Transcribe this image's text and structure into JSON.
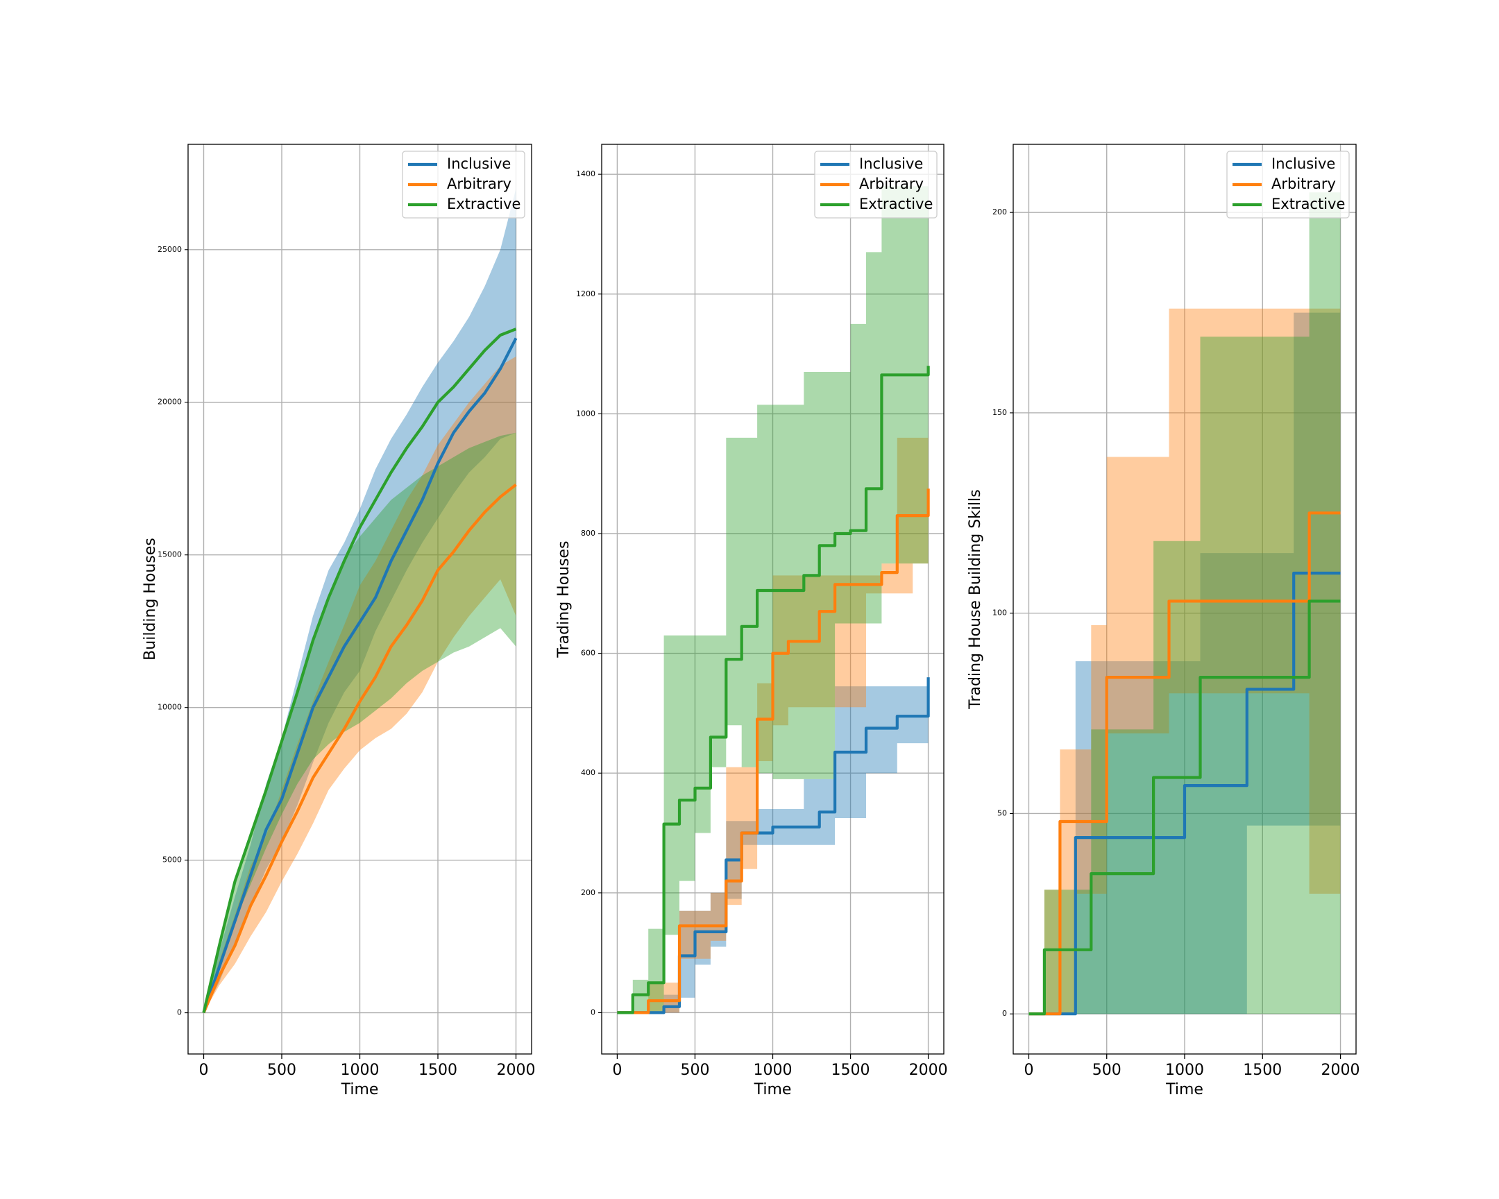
{
  "chart_data": [
    {
      "type": "line",
      "drawstyle": "default",
      "xlabel": "Time",
      "ylabel": "Building Houses",
      "x": [
        0,
        100,
        200,
        300,
        400,
        500,
        600,
        700,
        800,
        900,
        1000,
        1100,
        1200,
        1300,
        1400,
        1500,
        1600,
        1700,
        1800,
        1900,
        2000
      ],
      "xlim": [
        -100,
        2100
      ],
      "ylim": [
        -1350,
        28450
      ],
      "xticks": [
        0,
        500,
        1000,
        1500,
        2000
      ],
      "yticks": [
        0,
        5000,
        10000,
        15000,
        20000,
        25000
      ],
      "grid": true,
      "legend": "upper right",
      "series": [
        {
          "name": "Inclusive",
          "color": "#1f77b4",
          "values": [
            0,
            1500,
            3000,
            4500,
            6000,
            7000,
            8500,
            10000,
            11000,
            12000,
            12800,
            13600,
            14800,
            15800,
            16800,
            18000,
            19000,
            19700,
            20300,
            21100,
            22100
          ],
          "lower": [
            0,
            1000,
            2300,
            3500,
            4700,
            5600,
            6800,
            8200,
            9500,
            10500,
            11200,
            12500,
            13500,
            14500,
            15400,
            16200,
            17000,
            17700,
            18200,
            18800,
            19000
          ],
          "upper": [
            0,
            2000,
            3800,
            5500,
            7500,
            9000,
            11000,
            13000,
            14500,
            15400,
            16500,
            17800,
            18800,
            19600,
            20500,
            21300,
            22000,
            22800,
            23800,
            25000,
            27000
          ]
        },
        {
          "name": "Arbitrary",
          "color": "#ff7f0e",
          "values": [
            0,
            1200,
            2200,
            3500,
            4500,
            5600,
            6600,
            7700,
            8500,
            9300,
            10200,
            11000,
            12000,
            12700,
            13500,
            14500,
            15100,
            15800,
            16400,
            16900,
            17300
          ],
          "lower": [
            0,
            900,
            1600,
            2500,
            3300,
            4300,
            5200,
            6200,
            7300,
            8000,
            8600,
            9000,
            9300,
            9800,
            10500,
            11500,
            12300,
            13000,
            13600,
            14200,
            13000
          ],
          "upper": [
            0,
            1700,
            3200,
            4800,
            5800,
            7300,
            8800,
            10200,
            11500,
            12700,
            14000,
            14800,
            15800,
            16800,
            17600,
            18600,
            19300,
            20000,
            20600,
            21200,
            21500
          ]
        },
        {
          "name": "Extractive",
          "color": "#2ca02c",
          "values": [
            0,
            2200,
            4300,
            5800,
            7300,
            8900,
            10500,
            12200,
            13600,
            14800,
            15900,
            16800,
            17700,
            18500,
            19200,
            20000,
            20500,
            21100,
            21700,
            22200,
            22400
          ],
          "lower": [
            0,
            1500,
            3000,
            4200,
            5400,
            6500,
            7500,
            8300,
            8800,
            9200,
            9500,
            9900,
            10300,
            10800,
            11200,
            11500,
            11800,
            12000,
            12300,
            12600,
            12000
          ],
          "upper": [
            0,
            2300,
            4400,
            5900,
            7400,
            9000,
            10600,
            12300,
            13700,
            14900,
            15600,
            16200,
            16800,
            17200,
            17600,
            17900,
            18200,
            18500,
            18700,
            18900,
            19000
          ]
        }
      ]
    },
    {
      "type": "line",
      "drawstyle": "steps-post",
      "xlabel": "Time",
      "ylabel": "Trading Houses",
      "x": [
        0,
        100,
        200,
        300,
        400,
        500,
        600,
        700,
        800,
        900,
        1000,
        1100,
        1200,
        1300,
        1400,
        1500,
        1600,
        1700,
        1800,
        1900,
        2000
      ],
      "xlim": [
        -100,
        2100
      ],
      "ylim": [
        -69,
        1450
      ],
      "xticks": [
        0,
        500,
        1000,
        1500,
        2000
      ],
      "yticks": [
        0,
        200,
        400,
        600,
        800,
        1000,
        1200,
        1400
      ],
      "grid": true,
      "legend": "upper right",
      "series": [
        {
          "name": "Inclusive",
          "color": "#1f77b4",
          "values": [
            0,
            0,
            0,
            10,
            95,
            135,
            135,
            255,
            300,
            300,
            310,
            310,
            310,
            335,
            435,
            435,
            475,
            475,
            495,
            495,
            560
          ],
          "lower": [
            0,
            0,
            0,
            0,
            25,
            80,
            110,
            190,
            280,
            280,
            280,
            280,
            280,
            280,
            325,
            325,
            400,
            400,
            450,
            450,
            450
          ],
          "upper": [
            0,
            0,
            0,
            30,
            170,
            170,
            200,
            320,
            320,
            340,
            340,
            340,
            390,
            390,
            545,
            545,
            545,
            545,
            545,
            545,
            670
          ]
        },
        {
          "name": "Arbitrary",
          "color": "#ff7f0e",
          "values": [
            0,
            0,
            20,
            20,
            145,
            145,
            145,
            220,
            300,
            490,
            600,
            620,
            620,
            670,
            715,
            715,
            715,
            735,
            830,
            830,
            875
          ],
          "lower": [
            0,
            0,
            0,
            0,
            90,
            90,
            120,
            180,
            240,
            420,
            480,
            510,
            510,
            510,
            510,
            510,
            700,
            700,
            700,
            750,
            780
          ],
          "upper": [
            0,
            0,
            50,
            50,
            170,
            170,
            200,
            410,
            410,
            550,
            730,
            730,
            730,
            730,
            730,
            730,
            730,
            750,
            960,
            960,
            1055
          ]
        },
        {
          "name": "Extractive",
          "color": "#2ca02c",
          "values": [
            0,
            30,
            50,
            315,
            355,
            375,
            460,
            590,
            645,
            705,
            705,
            705,
            730,
            780,
            800,
            805,
            875,
            1065,
            1065,
            1065,
            1080
          ],
          "lower": [
            0,
            0,
            0,
            130,
            220,
            300,
            410,
            480,
            410,
            400,
            390,
            390,
            390,
            390,
            650,
            650,
            650,
            750,
            750,
            750,
            780
          ],
          "upper": [
            0,
            55,
            140,
            630,
            630,
            630,
            630,
            960,
            960,
            1015,
            1015,
            1015,
            1070,
            1070,
            1070,
            1150,
            1270,
            1380,
            1380,
            1380,
            1400
          ]
        }
      ]
    },
    {
      "type": "line",
      "drawstyle": "steps-post",
      "xlabel": "Time",
      "ylabel": "Trading House Building Skills",
      "x": [
        0,
        100,
        200,
        300,
        400,
        500,
        600,
        700,
        800,
        900,
        1000,
        1100,
        1200,
        1300,
        1400,
        1500,
        1600,
        1700,
        1800,
        1900,
        2000
      ],
      "xlim": [
        -100,
        2100
      ],
      "ylim": [
        -10,
        217
      ],
      "xticks": [
        0,
        500,
        1000,
        1500,
        2000
      ],
      "yticks": [
        0,
        50,
        100,
        150,
        200
      ],
      "grid": true,
      "legend": "upper right",
      "series": [
        {
          "name": "Inclusive",
          "color": "#1f77b4",
          "values": [
            0,
            0,
            0,
            44,
            44,
            44,
            44,
            44,
            44,
            44,
            57,
            57,
            57,
            57,
            81,
            81,
            81,
            110,
            110,
            110,
            110
          ],
          "lower": [
            0,
            0,
            0,
            0,
            0,
            0,
            0,
            0,
            0,
            0,
            0,
            0,
            0,
            0,
            47,
            47,
            47,
            47,
            47,
            47,
            47
          ],
          "upper": [
            0,
            0,
            0,
            88,
            88,
            88,
            88,
            88,
            88,
            88,
            88,
            115,
            115,
            115,
            115,
            115,
            115,
            175,
            175,
            175,
            175
          ]
        },
        {
          "name": "Arbitrary",
          "color": "#ff7f0e",
          "values": [
            0,
            0,
            48,
            48,
            48,
            84,
            84,
            84,
            84,
            103,
            103,
            103,
            103,
            103,
            103,
            103,
            103,
            103,
            125,
            125,
            125
          ],
          "lower": [
            0,
            0,
            0,
            30,
            30,
            70,
            70,
            70,
            70,
            80,
            80,
            80,
            80,
            80,
            80,
            80,
            80,
            80,
            30,
            30,
            30
          ],
          "upper": [
            0,
            31,
            66,
            66,
            97,
            139,
            139,
            139,
            139,
            176,
            176,
            176,
            176,
            176,
            176,
            176,
            176,
            176,
            176,
            176,
            176
          ]
        },
        {
          "name": "Extractive",
          "color": "#2ca02c",
          "values": [
            0,
            16,
            16,
            16,
            35,
            35,
            35,
            35,
            59,
            59,
            59,
            84,
            84,
            84,
            84,
            84,
            84,
            84,
            103,
            103,
            103
          ],
          "lower": [
            0,
            0,
            0,
            0,
            0,
            0,
            0,
            0,
            0,
            0,
            0,
            0,
            0,
            0,
            0,
            0,
            0,
            0,
            0,
            0,
            0
          ],
          "upper": [
            0,
            31,
            31,
            31,
            71,
            71,
            71,
            71,
            118,
            118,
            118,
            169,
            169,
            169,
            169,
            169,
            169,
            169,
            205,
            205,
            205
          ]
        }
      ]
    }
  ]
}
